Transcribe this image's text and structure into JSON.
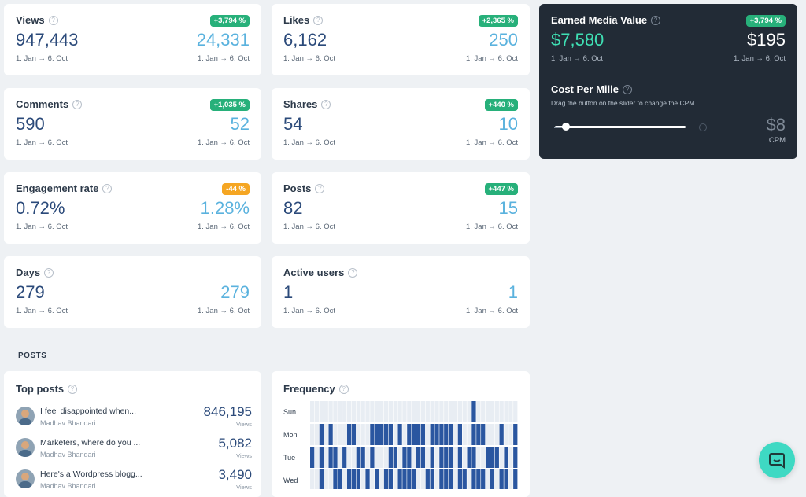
{
  "date_range": "1. Jan → 6. Oct",
  "stats": [
    {
      "title": "Views",
      "badge": "+3,794 %",
      "badge_color": "#27b07a",
      "main": "947,443",
      "sub": "24,331",
      "date_left": "1. Jan → 6. Oct",
      "date_right": "1. Jan → 6. Oct"
    },
    {
      "title": "Likes",
      "badge": "+2,365 %",
      "badge_color": "#27b07a",
      "main": "6,162",
      "sub": "250",
      "date_left": "1. Jan → 6. Oct",
      "date_right": "1. Jan → 6. Oct"
    },
    {
      "title": "Comments",
      "badge": "+1,035 %",
      "badge_color": "#27b07a",
      "main": "590",
      "sub": "52",
      "date_left": "1. Jan → 6. Oct",
      "date_right": "1. Jan → 6. Oct"
    },
    {
      "title": "Shares",
      "badge": "+440 %",
      "badge_color": "#27b07a",
      "main": "54",
      "sub": "10",
      "date_left": "1. Jan → 6. Oct",
      "date_right": "1. Jan → 6. Oct"
    },
    {
      "title": "Engagement rate",
      "badge": "-44 %",
      "badge_color": "#f5a623",
      "main": "0.72%",
      "sub": "1.28%",
      "date_left": "1. Jan → 6. Oct",
      "date_right": "1. Jan → 6. Oct"
    },
    {
      "title": "Posts",
      "badge": "+447 %",
      "badge_color": "#27b07a",
      "main": "82",
      "sub": "15",
      "date_left": "1. Jan → 6. Oct",
      "date_right": "1. Jan → 6. Oct"
    },
    {
      "title": "Days",
      "badge": "",
      "main": "279",
      "sub": "279",
      "date_left": "1. Jan → 6. Oct",
      "date_right": "1. Jan → 6. Oct"
    },
    {
      "title": "Active users",
      "badge": "",
      "main": "1",
      "sub": "1",
      "date_left": "1. Jan → 6. Oct",
      "date_right": "1. Jan → 6. Oct"
    }
  ],
  "emv": {
    "title": "Earned Media Value",
    "badge": "+3,794 %",
    "main": "$7,580",
    "sub": "$195",
    "date_left": "1. Jan → 6. Oct",
    "date_right": "1. Jan → 6. Oct",
    "cpm_title": "Cost Per Mille",
    "cpm_help": "Drag the button on the slider to change the CPM",
    "cpm_value": "$8",
    "cpm_unit": "CPM",
    "slider_fraction": 0.06
  },
  "posts_section_label": "POSTS",
  "top_posts": {
    "title": "Top posts",
    "items": [
      {
        "title": "I feel disappointed when...",
        "author": "Madhav Bhandari",
        "value": "846,195",
        "unit": "Views"
      },
      {
        "title": "Marketers, where do you ...",
        "author": "Madhav Bhandari",
        "value": "5,082",
        "unit": "Views"
      },
      {
        "title": "Here's a Wordpress blogg...",
        "author": "Madhav Bhandari",
        "value": "3,490",
        "unit": "Views"
      }
    ]
  },
  "frequency": {
    "title": "Frequency",
    "days": [
      "Sun",
      "Mon",
      "Tue",
      "Wed"
    ],
    "rows": [
      "000000000000000000000000000000000001000000000",
      "001010001100011111010111101111101001110001001",
      "101011010011010001101101101011101011001110101",
      "001001101110101011011110011011101101110101101"
    ],
    "colors": {
      "on": "#2a56a0",
      "off": "#e8edf3"
    }
  }
}
